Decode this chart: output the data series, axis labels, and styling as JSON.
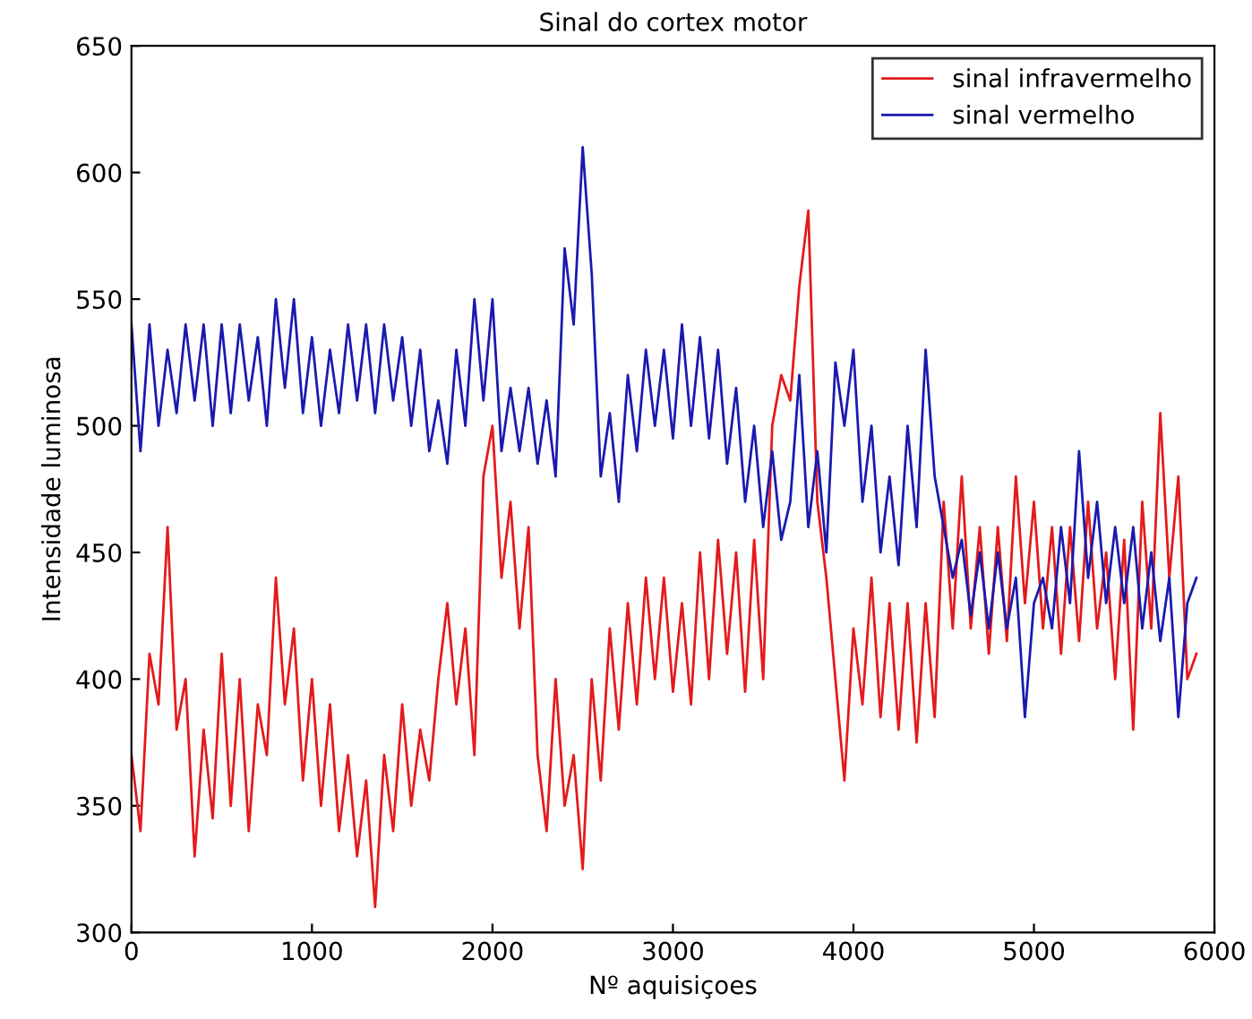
{
  "chart_data": {
    "type": "line",
    "title": "Sinal do cortex motor",
    "xlabel": "Nº aquisiçoes",
    "ylabel": "Intensidade luminosa",
    "x": [
      0,
      50,
      100,
      150,
      200,
      250,
      300,
      350,
      400,
      450,
      500,
      550,
      600,
      650,
      700,
      750,
      800,
      850,
      900,
      950,
      1000,
      1050,
      1100,
      1150,
      1200,
      1250,
      1300,
      1350,
      1400,
      1450,
      1500,
      1550,
      1600,
      1650,
      1700,
      1750,
      1800,
      1850,
      1900,
      1950,
      2000,
      2050,
      2100,
      2150,
      2200,
      2250,
      2300,
      2350,
      2400,
      2450,
      2500,
      2550,
      2600,
      2650,
      2700,
      2750,
      2800,
      2850,
      2900,
      2950,
      3000,
      3050,
      3100,
      3150,
      3200,
      3250,
      3300,
      3350,
      3400,
      3450,
      3500,
      3550,
      3600,
      3650,
      3700,
      3750,
      3800,
      3850,
      3900,
      3950,
      4000,
      4050,
      4100,
      4150,
      4200,
      4250,
      4300,
      4350,
      4400,
      4450,
      4500,
      4550,
      4600,
      4650,
      4700,
      4750,
      4800,
      4850,
      4900,
      4950,
      5000,
      5050,
      5100,
      5150,
      5200,
      5250,
      5300,
      5350,
      5400,
      5450,
      5500,
      5550,
      5600,
      5650,
      5700,
      5750,
      5800,
      5850,
      5900
    ],
    "series": [
      {
        "name": "sinal infravermelho",
        "color": "#e41a1c",
        "values": [
          370,
          340,
          410,
          390,
          460,
          380,
          400,
          330,
          380,
          345,
          410,
          350,
          400,
          340,
          390,
          370,
          440,
          390,
          420,
          360,
          400,
          350,
          390,
          340,
          370,
          330,
          360,
          310,
          370,
          340,
          390,
          350,
          380,
          360,
          400,
          430,
          390,
          420,
          370,
          480,
          500,
          440,
          470,
          420,
          460,
          370,
          340,
          400,
          350,
          370,
          325,
          400,
          360,
          420,
          380,
          430,
          390,
          440,
          400,
          440,
          395,
          430,
          390,
          450,
          400,
          455,
          410,
          450,
          395,
          455,
          400,
          500,
          520,
          510,
          555,
          585,
          470,
          440,
          400,
          360,
          420,
          390,
          440,
          385,
          430,
          380,
          430,
          375,
          430,
          385,
          470,
          420,
          480,
          420,
          460,
          410,
          460,
          415,
          480,
          430,
          470,
          420,
          460,
          410,
          460,
          415,
          470,
          420,
          450,
          400,
          455,
          380,
          470,
          420,
          505,
          440,
          480,
          400,
          410
        ]
      },
      {
        "name": "sinal vermelho",
        "color": "#1a1ab0",
        "values": [
          540,
          490,
          540,
          500,
          530,
          505,
          540,
          510,
          540,
          500,
          540,
          505,
          540,
          510,
          535,
          500,
          550,
          515,
          550,
          505,
          535,
          500,
          530,
          505,
          540,
          510,
          540,
          505,
          540,
          510,
          535,
          500,
          530,
          490,
          510,
          485,
          530,
          500,
          550,
          510,
          550,
          490,
          515,
          490,
          515,
          485,
          510,
          480,
          570,
          540,
          610,
          560,
          480,
          505,
          470,
          520,
          490,
          530,
          500,
          530,
          495,
          540,
          500,
          535,
          495,
          530,
          485,
          515,
          470,
          500,
          460,
          490,
          455,
          470,
          520,
          460,
          490,
          450,
          525,
          500,
          530,
          470,
          500,
          450,
          480,
          445,
          500,
          460,
          530,
          480,
          460,
          440,
          455,
          425,
          450,
          420,
          450,
          420,
          440,
          385,
          430,
          440,
          420,
          460,
          430,
          490,
          440,
          470,
          430,
          460,
          430,
          460,
          420,
          450,
          415,
          440,
          385,
          430,
          440
        ]
      }
    ],
    "xlim": [
      0,
      6000
    ],
    "ylim": [
      300,
      650
    ],
    "xticks": [
      0,
      1000,
      2000,
      3000,
      4000,
      5000,
      6000
    ],
    "yticks": [
      300,
      350,
      400,
      450,
      500,
      550,
      600,
      650
    ],
    "legend": "top right",
    "grid": false
  }
}
